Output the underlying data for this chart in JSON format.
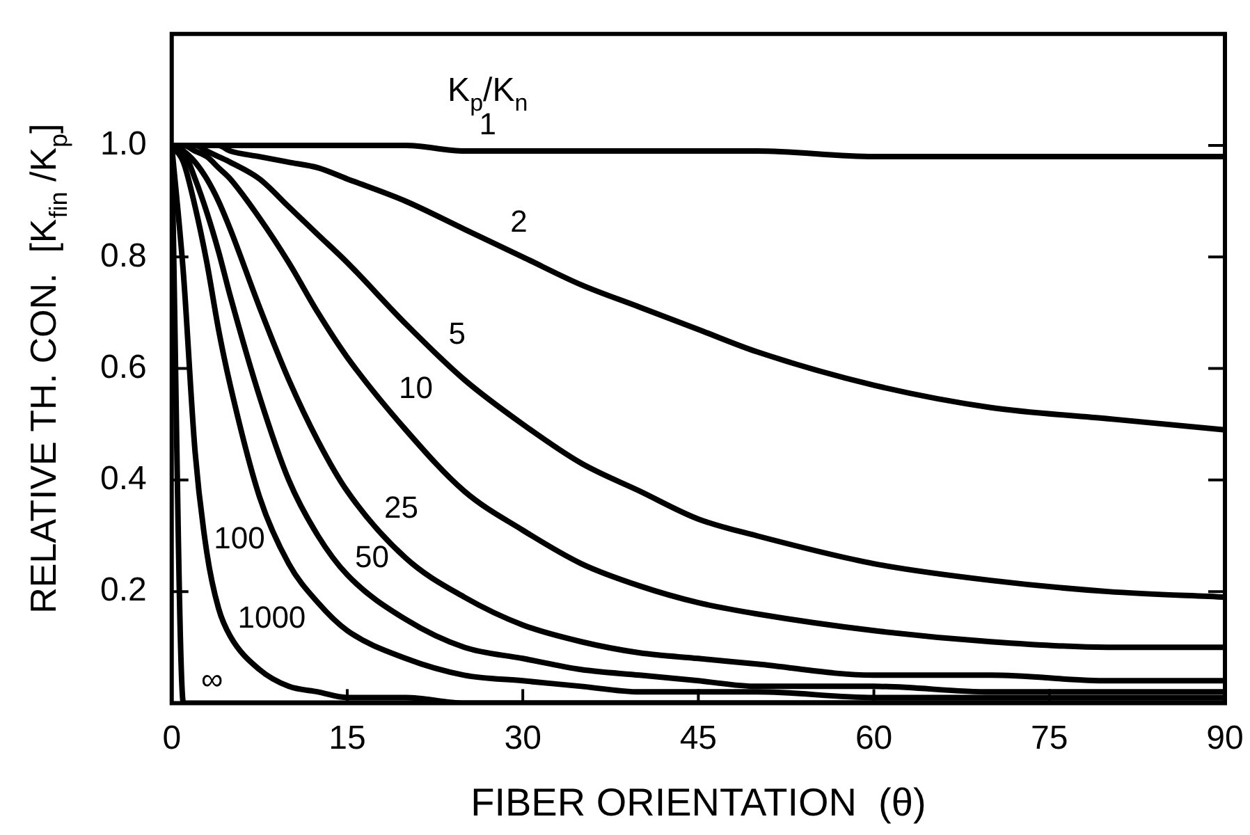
{
  "chart_data": {
    "type": "line",
    "xlabel": "FIBER ORIENTATION  (θ)",
    "ylabel": "RELATIVE TH. CON.  [K$_{fin}$ /K$_{p}$]",
    "legend_title": "K$_{p}$/K$_{n}$",
    "x": [
      0,
      1,
      2,
      3,
      4,
      5,
      7.5,
      10,
      12.5,
      15,
      20,
      25,
      30,
      35,
      40,
      45,
      50,
      60,
      70,
      80,
      90
    ],
    "xlim": [
      0,
      90
    ],
    "xticks": [
      0,
      15,
      30,
      45,
      60,
      75,
      90
    ],
    "ylim": [
      0,
      1.2
    ],
    "yticks": [
      0.2,
      0.4,
      0.6,
      0.8,
      {
        "value": 1,
        "label": "1.0"
      }
    ],
    "grid": false,
    "legend": false,
    "marker": "none",
    "line_style": "solid",
    "series": [
      {
        "name": "1",
        "color": "#000000",
        "values": [
          1,
          1,
          1,
          1,
          1,
          1,
          1,
          1,
          1,
          1,
          1,
          0.99,
          0.99,
          0.99,
          0.99,
          0.99,
          0.99,
          0.98,
          0.98,
          0.98,
          0.98
        ]
      },
      {
        "name": "2",
        "color": "#000000",
        "values": [
          1,
          1,
          1,
          1,
          1,
          0.99,
          0.98,
          0.97,
          0.96,
          0.94,
          0.9,
          0.85,
          0.8,
          0.75,
          0.71,
          0.67,
          0.63,
          0.57,
          0.53,
          0.51,
          0.49
        ]
      },
      {
        "name": "5",
        "color": "#000000",
        "values": [
          1,
          1,
          1,
          0.99,
          0.98,
          0.97,
          0.94,
          0.89,
          0.84,
          0.79,
          0.68,
          0.58,
          0.5,
          0.43,
          0.38,
          0.33,
          0.3,
          0.25,
          0.22,
          0.2,
          0.19
        ]
      },
      {
        "name": "10",
        "color": "#000000",
        "values": [
          1,
          1,
          0.99,
          0.98,
          0.96,
          0.94,
          0.87,
          0.79,
          0.7,
          0.62,
          0.49,
          0.38,
          0.31,
          0.25,
          0.21,
          0.18,
          0.16,
          0.13,
          0.11,
          0.1,
          0.1
        ]
      },
      {
        "name": "25",
        "color": "#000000",
        "values": [
          1,
          0.99,
          0.97,
          0.94,
          0.9,
          0.85,
          0.71,
          0.58,
          0.47,
          0.38,
          0.26,
          0.19,
          0.14,
          0.11,
          0.09,
          0.08,
          0.07,
          0.05,
          0.05,
          0.04,
          0.04
        ]
      },
      {
        "name": "50",
        "color": "#000000",
        "values": [
          1,
          0.99,
          0.94,
          0.88,
          0.81,
          0.73,
          0.55,
          0.4,
          0.3,
          0.23,
          0.15,
          0.1,
          0.08,
          0.06,
          0.05,
          0.04,
          0.03,
          0.03,
          0.02,
          0.02,
          0.02
        ]
      },
      {
        "name": "100",
        "color": "#000000",
        "values": [
          1,
          0.97,
          0.89,
          0.79,
          0.67,
          0.57,
          0.37,
          0.25,
          0.18,
          0.13,
          0.08,
          0.05,
          0.04,
          0.03,
          0.02,
          0.02,
          0.02,
          0.01,
          0.01,
          0.01,
          0.01
        ]
      },
      {
        "name": "1000",
        "color": "#000000",
        "values": [
          1,
          0.77,
          0.45,
          0.27,
          0.17,
          0.12,
          0.06,
          0.03,
          0.02,
          0.01,
          0.01,
          0,
          0,
          0,
          0,
          0,
          0,
          0,
          0,
          0,
          0
        ]
      },
      {
        "name": "∞",
        "color": "#000000",
        "values": [
          1,
          0,
          0,
          0,
          0,
          0,
          0,
          0,
          0,
          0,
          0,
          0,
          0,
          0,
          0,
          0,
          0,
          0,
          0,
          0,
          0
        ]
      }
    ]
  }
}
